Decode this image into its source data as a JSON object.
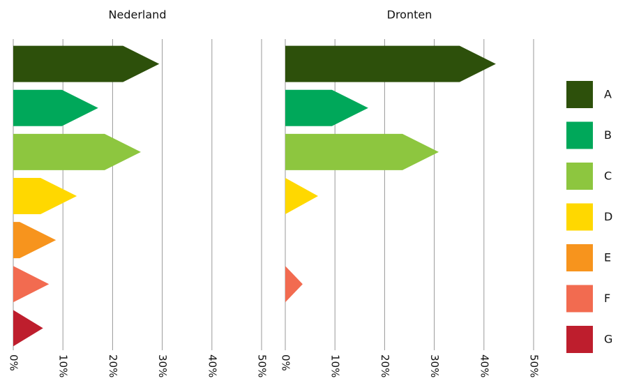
{
  "chart_data": [
    {
      "type": "bar",
      "title": "Nederland",
      "categories": [
        "A",
        "B",
        "C",
        "D",
        "E",
        "F",
        "G"
      ],
      "colors": [
        "#2d500b",
        "#00a85a",
        "#8dc63f",
        "#ffd800",
        "#f7941d",
        "#f26b50",
        "#be1e2d"
      ],
      "values": [
        29.4,
        17.1,
        25.7,
        12.8,
        8.6,
        7.2,
        6.0
      ],
      "xlim": [
        0,
        50
      ],
      "xticks": [
        {
          "value": 0,
          "label": "0%"
        },
        {
          "value": 10,
          "label": "10%"
        },
        {
          "value": 20,
          "label": "20%"
        },
        {
          "value": 30,
          "label": "30%"
        },
        {
          "value": 40,
          "label": "40%"
        },
        {
          "value": 50,
          "label": "50%"
        }
      ],
      "grid": true
    },
    {
      "type": "bar",
      "title": "Dronten",
      "values": [
        42.4,
        16.7,
        30.9,
        6.6,
        0,
        3.5,
        0
      ],
      "xlim": [
        0,
        50
      ],
      "xticks": [
        {
          "value": 0,
          "label": "0%"
        },
        {
          "value": 10,
          "label": "10%"
        },
        {
          "value": 20,
          "label": "20%"
        },
        {
          "value": 30,
          "label": "30%"
        },
        {
          "value": 40,
          "label": "40%"
        },
        {
          "value": 50,
          "label": "50%"
        }
      ],
      "grid": true
    }
  ]
}
